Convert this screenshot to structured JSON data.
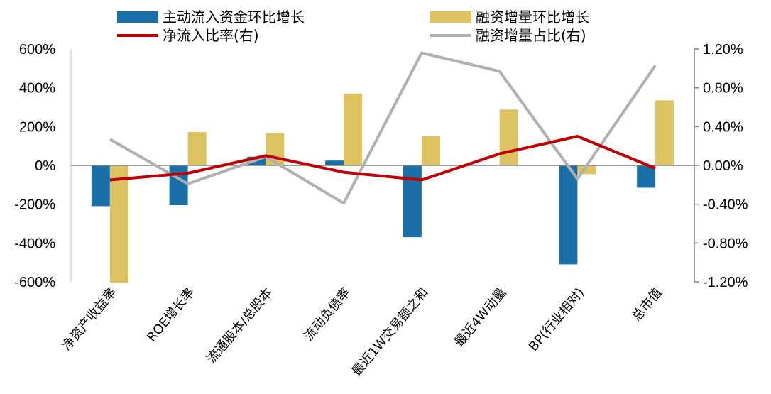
{
  "chart_data": {
    "type": "bar",
    "categories": [
      "净资产收益率",
      "ROE增长率",
      "流通股本/总股本",
      "流动负债率",
      "最近1W交易额之和",
      "最近4W动量",
      "BP(行业相对)",
      "总市值"
    ],
    "series": [
      {
        "name": "主动流入资金环比增长",
        "kind": "bar",
        "axis": "left",
        "color": "#1a6fa8",
        "values": [
          -210,
          -205,
          45,
          25,
          -370,
          0,
          -510,
          -115
        ]
      },
      {
        "name": "融资增量环比增长",
        "kind": "bar",
        "axis": "left",
        "color": "#dcc35f",
        "values": [
          -605,
          172,
          168,
          370,
          150,
          288,
          -45,
          335
        ]
      },
      {
        "name": "净流入比率(右)",
        "kind": "line",
        "axis": "right",
        "color": "#c00000",
        "values": [
          -0.15,
          -0.08,
          0.1,
          -0.07,
          -0.15,
          0.12,
          0.3,
          -0.03
        ]
      },
      {
        "name": "融资增量占比(右)",
        "kind": "line",
        "axis": "right",
        "color": "#b0b0b0",
        "values": [
          0.27,
          -0.19,
          0.09,
          -0.39,
          1.16,
          0.97,
          -0.14,
          1.03
        ]
      }
    ],
    "y_left": {
      "range": [
        -600,
        600
      ],
      "ticks": [
        600,
        400,
        200,
        0,
        -200,
        -400,
        -600
      ],
      "tick_labels": [
        "600%",
        "400%",
        "200%",
        "0%",
        "-200%",
        "-400%",
        "-600%"
      ]
    },
    "y_right": {
      "range": [
        -1.2,
        1.2
      ],
      "ticks": [
        1.2,
        0.8,
        0.4,
        0.0,
        -0.4,
        -0.8,
        -1.2
      ],
      "tick_labels": [
        "1.20%",
        "0.80%",
        "0.40%",
        "0.00%",
        "-0.40%",
        "-0.80%",
        "-1.20%"
      ]
    },
    "legend_position": "top",
    "grid": false
  }
}
